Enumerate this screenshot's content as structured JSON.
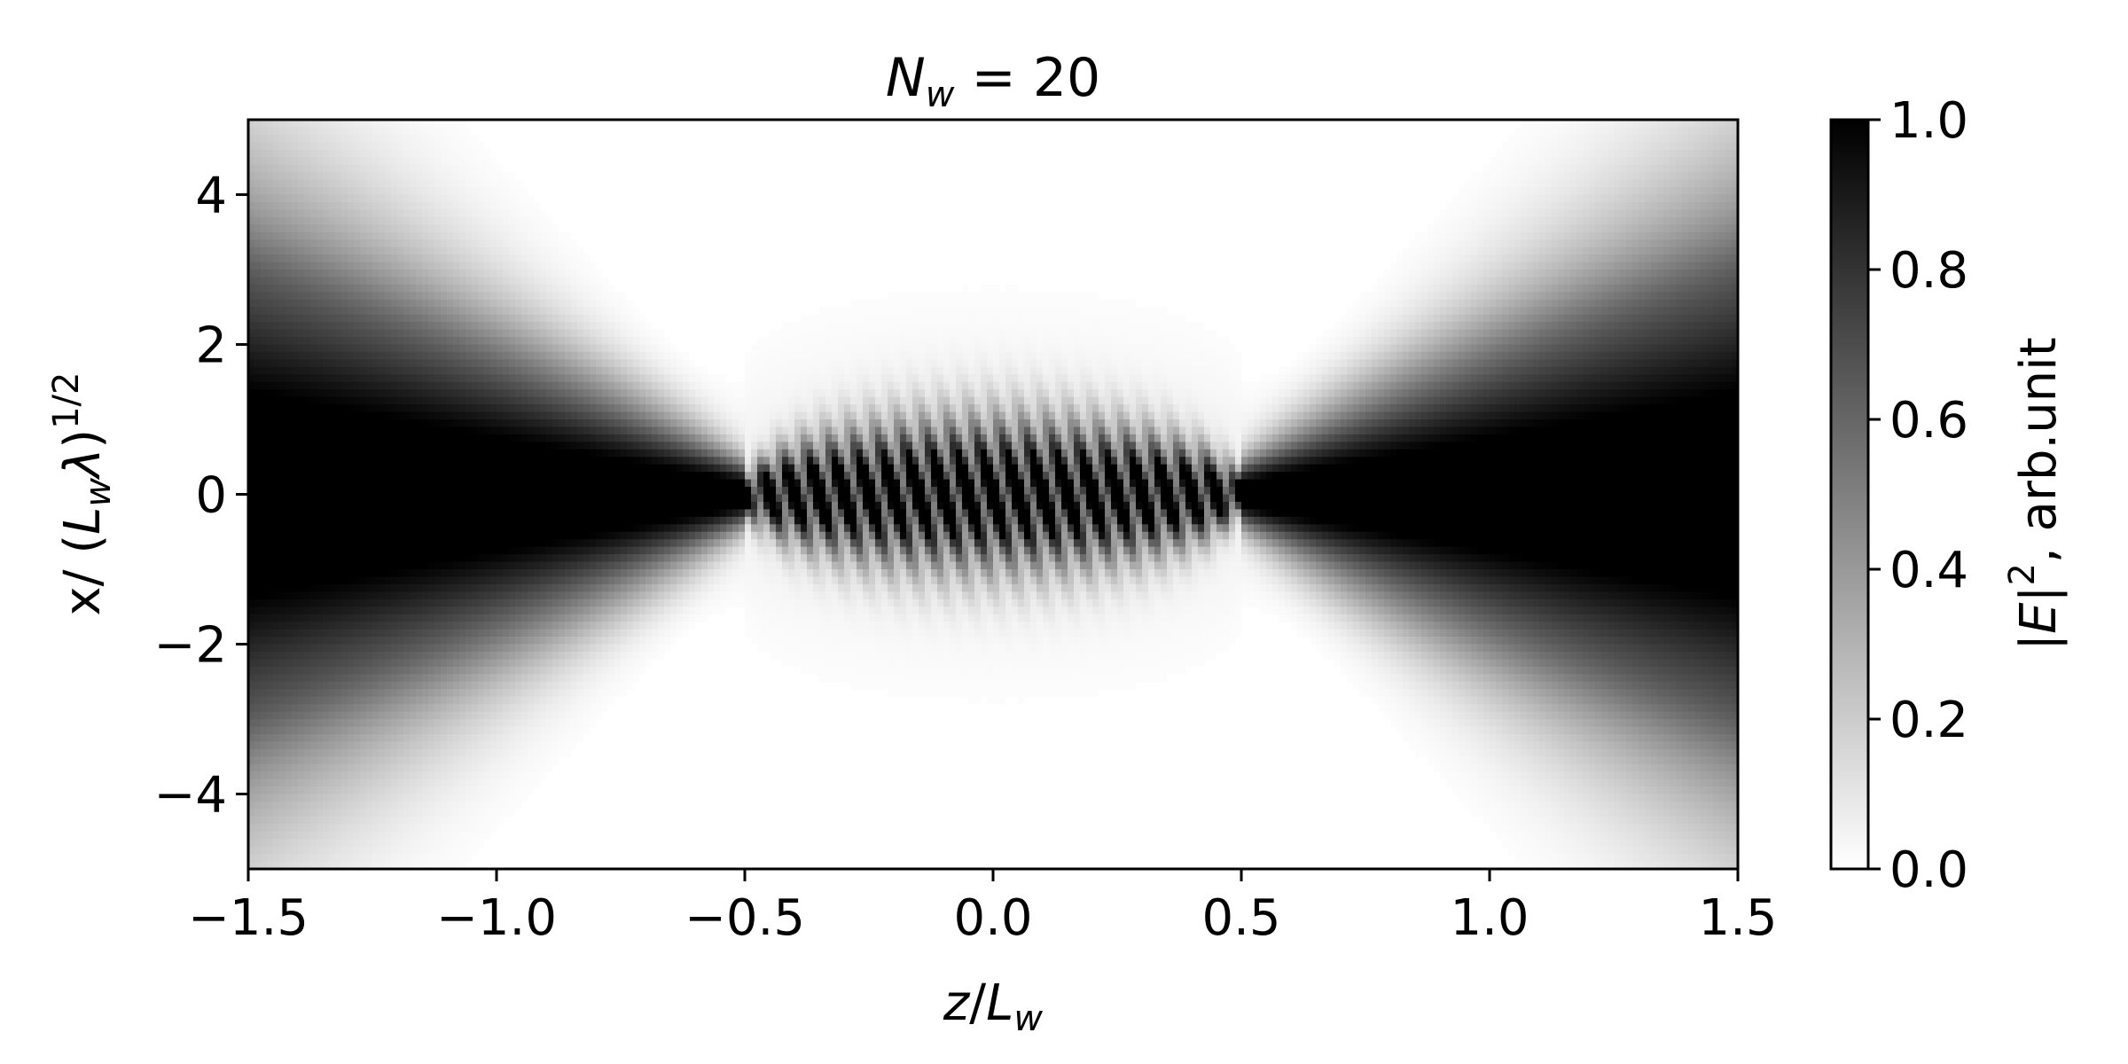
{
  "chart_data": {
    "type": "heatmap",
    "title": "N_w = 20",
    "xlabel": "z/L_w",
    "ylabel": "x/ (L_wλ)^1/2",
    "xlim": [
      -1.5,
      1.5
    ],
    "ylim": [
      -5,
      5
    ],
    "x_ticks": [
      -1.5,
      -1.0,
      -0.5,
      0.0,
      0.5,
      1.0,
      1.5
    ],
    "x_tick_labels": [
      "−1.5",
      "−1.0",
      "−0.5",
      "0.0",
      "0.5",
      "1.0",
      "1.5"
    ],
    "y_ticks": [
      4,
      2,
      0,
      -2,
      -4
    ],
    "y_tick_labels": [
      "4",
      "2",
      "0",
      "−2",
      "−4"
    ],
    "colormap": "Greys",
    "color_low": "#ffffff",
    "color_high": "#000000",
    "colorbar": {
      "label": "|E|², arb.unit",
      "range": [
        0.0,
        1.0
      ],
      "ticks": [
        0.0,
        0.2,
        0.4,
        0.6,
        0.8,
        1.0
      ],
      "tick_labels": [
        "0.0",
        "0.2",
        "0.4",
        "0.6",
        "0.8",
        "1.0"
      ]
    },
    "field_model": {
      "undulator_half_length": 0.5,
      "inside_width": 0.55,
      "outside_width_at_edge": 0.2,
      "outside_width_growth": 1.55,
      "oscillation_periods": 20
    }
  }
}
